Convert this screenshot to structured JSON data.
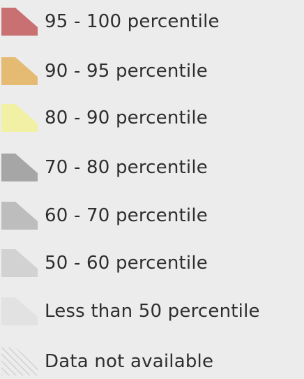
{
  "legend": {
    "items": [
      {
        "label": "95 - 100 percentile",
        "color": "#c97073",
        "pattern": "solid"
      },
      {
        "label": "90 - 95 percentile",
        "color": "#e5bb73",
        "pattern": "solid"
      },
      {
        "label": "80 - 90 percentile",
        "color": "#f1f0a4",
        "pattern": "solid"
      },
      {
        "label": "70 - 80 percentile",
        "color": "#a6a6a6",
        "pattern": "solid"
      },
      {
        "label": "60 - 70 percentile",
        "color": "#bdbdbd",
        "pattern": "solid"
      },
      {
        "label": "50 - 60 percentile",
        "color": "#d2d2d2",
        "pattern": "solid"
      },
      {
        "label": "Less than 50 percentile",
        "color": "#e2e2e2",
        "pattern": "solid"
      },
      {
        "label": "Data not available",
        "color": "#c8c8c8",
        "pattern": "hatched"
      }
    ]
  }
}
